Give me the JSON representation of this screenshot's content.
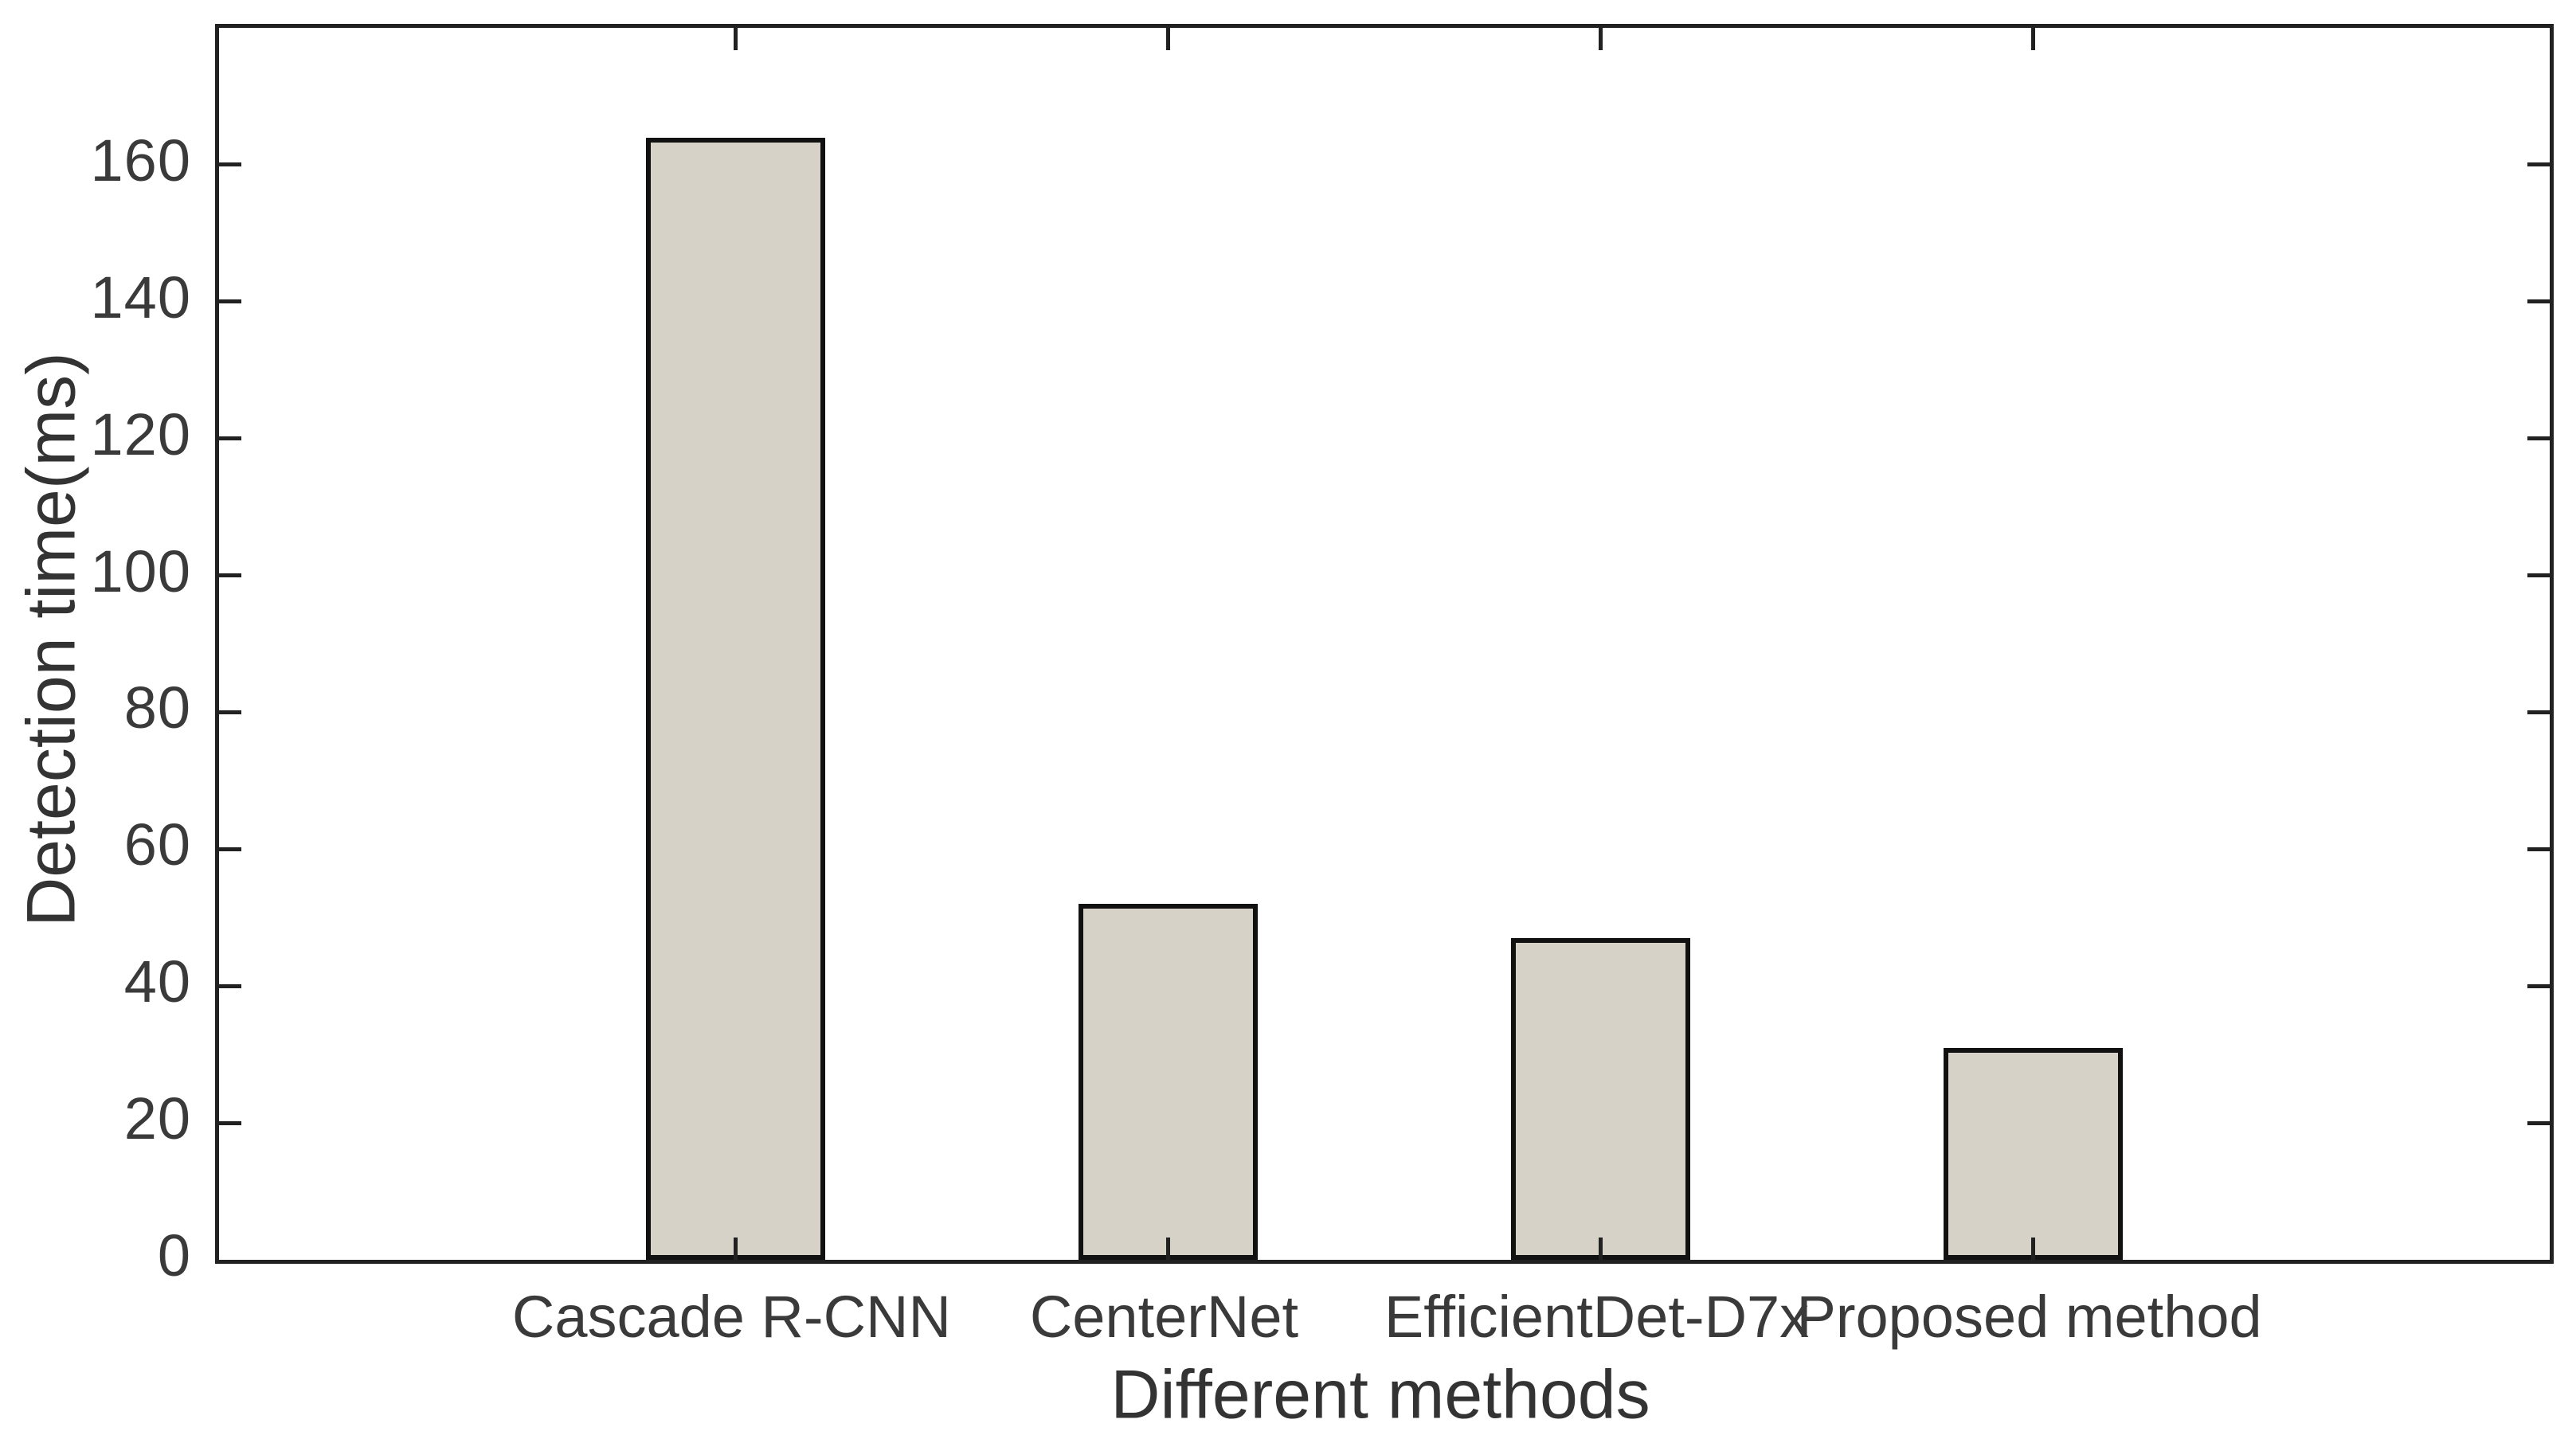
{
  "chart_data": {
    "type": "bar",
    "title": "",
    "categories": [
      "Cascade R-CNN",
      "CenterNet",
      "EfficientDet-D7x",
      "Proposed method"
    ],
    "values": [
      164,
      52,
      47,
      31
    ],
    "xlabel": "Different methods",
    "ylabel": "Detection time(ms)",
    "ylim": [
      0,
      180
    ],
    "yticks": [
      0,
      20,
      40,
      60,
      80,
      100,
      120,
      140,
      160
    ],
    "grid": "off",
    "legend": "none",
    "bar_color": "#d7d2c8",
    "bar_edge_color": "#111111",
    "axis_color": "#212121",
    "text_color": "#3a3a3a",
    "background_color": "#ffffff"
  }
}
